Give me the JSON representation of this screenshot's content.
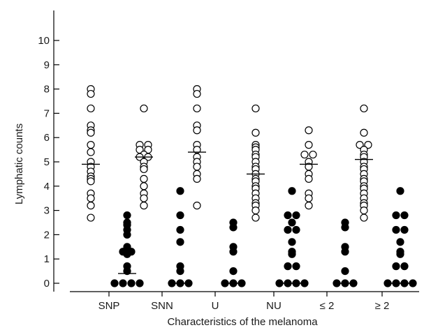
{
  "chart_data": {
    "type": "scatter",
    "xlabel": "Characteristics of the melanoma",
    "ylabel": "Lymphatic counts",
    "ylim": [
      0,
      10
    ],
    "yticks": [
      "0",
      "1",
      "2",
      "3",
      "4",
      "5",
      "6",
      "7",
      "8",
      "9",
      "10"
    ],
    "grid": false,
    "categories": [
      "SNP",
      "SNN",
      "U",
      "NU",
      "≤ 2",
      "≥ 2"
    ],
    "series": [
      {
        "marker": "open-circle",
        "color": "#000000",
        "values": [
          [
            8.0,
            7.8,
            7.2,
            6.5,
            6.3,
            6.2,
            5.7,
            5.4,
            5.0,
            4.8,
            4.6,
            4.4,
            4.3,
            4.2,
            3.7,
            3.5,
            3.2,
            2.7
          ],
          [
            7.2,
            5.7,
            5.7,
            5.5,
            5.5,
            5.3,
            5.2,
            5.2,
            5.0,
            4.8,
            4.7,
            4.3,
            4.0,
            3.7,
            3.5,
            3.2
          ],
          [
            8.0,
            7.8,
            7.2,
            6.5,
            6.3,
            5.7,
            5.5,
            5.2,
            5.0,
            4.8,
            4.5,
            4.3,
            3.2
          ],
          [
            7.2,
            6.2,
            5.7,
            5.6,
            5.5,
            5.3,
            5.2,
            5.0,
            4.8,
            4.7,
            4.5,
            4.3,
            4.2,
            4.0,
            3.9,
            3.7,
            3.5,
            3.3,
            3.2,
            3.0,
            2.7
          ],
          [
            6.3,
            5.7,
            5.3,
            5.3,
            5.0,
            4.8,
            4.5,
            4.3,
            3.7,
            3.5,
            3.2
          ],
          [
            7.2,
            6.2,
            5.7,
            5.7,
            5.5,
            5.3,
            5.2,
            5.0,
            4.8,
            4.7,
            4.5,
            4.3,
            4.2,
            4.0,
            3.9,
            3.7,
            3.5,
            3.3,
            3.2,
            3.0,
            2.7
          ]
        ],
        "means": [
          4.9,
          5.2,
          5.4,
          4.5,
          4.9,
          5.1
        ]
      },
      {
        "marker": "filled-circle",
        "color": "#000000",
        "values": [
          [
            2.8,
            2.5,
            2.4,
            2.2,
            2.0,
            1.5,
            1.4,
            1.3,
            1.3,
            1.2,
            0.7,
            0.5,
            0.0,
            0.0,
            0.0,
            0.0
          ],
          [
            3.8,
            2.8,
            2.2,
            1.7,
            0.7,
            0.5,
            0.0,
            0.0,
            0.0
          ],
          [
            2.5,
            2.3,
            1.5,
            1.3,
            0.5,
            0.0,
            0.0,
            0.0
          ],
          [
            3.8,
            2.8,
            2.8,
            2.5,
            2.2,
            2.2,
            1.7,
            1.3,
            1.2,
            0.7,
            0.7,
            0.0,
            0.0,
            0.0,
            0.0
          ],
          [
            2.5,
            2.3,
            1.5,
            1.3,
            0.5,
            0.0,
            0.0,
            0.0
          ],
          [
            3.8,
            2.8,
            2.8,
            2.2,
            2.2,
            1.7,
            1.3,
            1.2,
            0.7,
            0.7,
            0.0,
            0.0,
            0.0,
            0.0
          ]
        ],
        "means": [
          0.4,
          0.0,
          0.0,
          0.0,
          0.0,
          0.0
        ]
      }
    ]
  }
}
